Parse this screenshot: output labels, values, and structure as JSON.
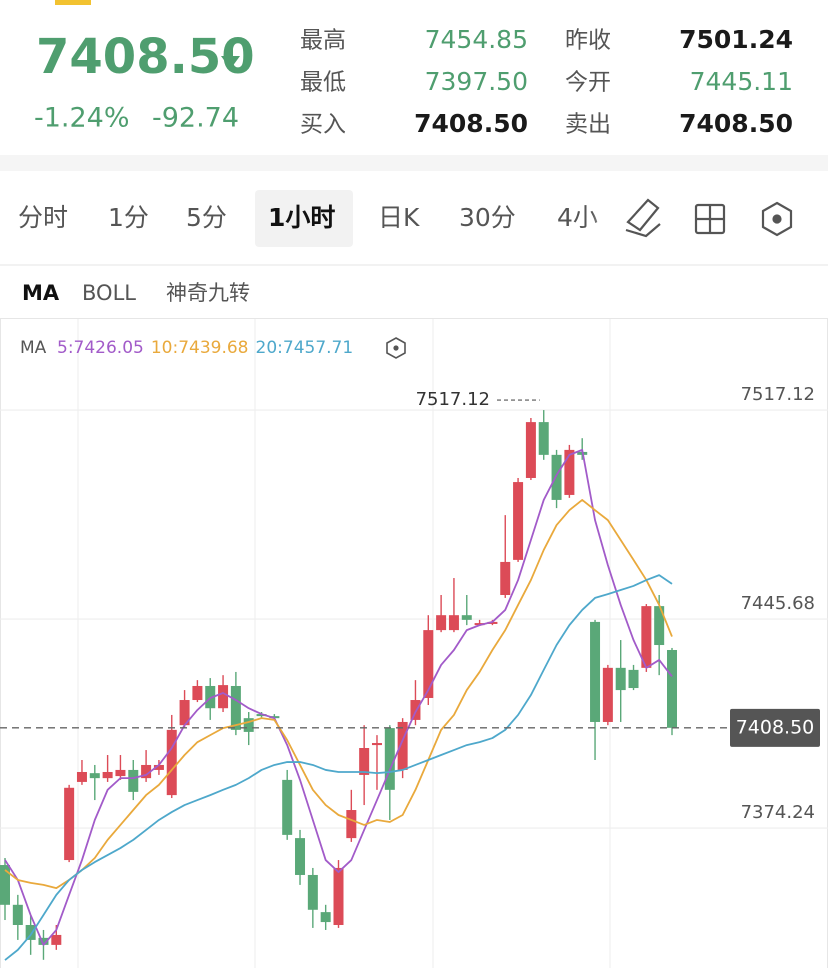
{
  "header": {
    "price": "7408.50",
    "change_pct": "-1.24%",
    "change": "-92.74",
    "stats": [
      {
        "label": "最高",
        "value": "7454.85",
        "tone": "green"
      },
      {
        "label": "昨收",
        "value": "7501.24",
        "tone": "black"
      },
      {
        "label": "最低",
        "value": "7397.50",
        "tone": "green"
      },
      {
        "label": "今开",
        "value": "7445.11",
        "tone": "green"
      },
      {
        "label": "买入",
        "value": "7408.50",
        "tone": "black"
      },
      {
        "label": "卖出",
        "value": "7408.50",
        "tone": "black"
      }
    ]
  },
  "tabs": [
    "分时",
    "1分",
    "5分",
    "1小时",
    "日K",
    "30分",
    "4小"
  ],
  "active_tab": 3,
  "indicators": [
    "MA",
    "BOLL",
    "神奇九转"
  ],
  "active_indicator": 0,
  "chart_data": {
    "type": "candlestick",
    "legend_title": "MA",
    "up_color": "#dc4b57",
    "down_color": "#5aa878",
    "ylim": [
      7326.4,
      7547.9
    ],
    "yticks": [
      7517.12,
      7445.68,
      7374.24
    ],
    "grid": true,
    "max_label": {
      "value": 7517.12,
      "label": "7517.12"
    },
    "last_price": {
      "value": 7408.5,
      "label": "7408.50"
    },
    "open": [
      7361.6,
      7348.0,
      7341.1,
      7336.7,
      7334.3,
      7363.3,
      7390.0,
      7393.0,
      7391.3,
      7392.0,
      7394.1,
      7391.3,
      7394.1,
      7385.5,
      7409.4,
      7418.0,
      7422.8,
      7415.2,
      7422.8,
      7411.8,
      7413.2,
      7412.5,
      7390.7,
      7370.8,
      7358.2,
      7345.5,
      7341.1,
      7370.8,
      7392.4,
      7402.6,
      7408.4,
      7394.1,
      7411.2,
      7418.7,
      7441.9,
      7441.9,
      7447.0,
      7443.6,
      7444.0,
      7453.9,
      7465.9,
      7493.9,
      7513.0,
      7501.8,
      7488.1,
      7502.8,
      7444.7,
      7410.5,
      7429.0,
      7428.3,
      7429.0,
      7450.1,
      7435.1
    ],
    "high": [
      7364.0,
      7351.4,
      7344.5,
      7339.4,
      7341.1,
      7389.0,
      7397.5,
      7395.8,
      7399.2,
      7399.2,
      7397.5,
      7400.9,
      7397.5,
      7412.9,
      7421.4,
      7424.8,
      7425.5,
      7426.5,
      7427.6,
      7413.9,
      7413.9,
      7413.2,
      7394.1,
      7373.6,
      7360.6,
      7348.0,
      7363.3,
      7387.3,
      7409.4,
      7406.0,
      7409.4,
      7411.8,
      7424.8,
      7447.0,
      7453.9,
      7459.7,
      7453.9,
      7445.4,
      7445.4,
      7481.2,
      7493.9,
      7514.4,
      7517.12,
      7503.5,
      7505.2,
      7507.5,
      7445.4,
      7430.0,
      7438.5,
      7430.0,
      7450.8,
      7453.9,
      7435.8
    ],
    "low": [
      7342.8,
      7336.0,
      7330.9,
      7329.2,
      7332.6,
      7362.6,
      7389.0,
      7383.8,
      7390.0,
      7390.7,
      7383.8,
      7390.0,
      7392.4,
      7384.5,
      7408.4,
      7417.3,
      7411.2,
      7413.9,
      7406.0,
      7402.6,
      7411.8,
      7411.2,
      7370.2,
      7354.8,
      7340.1,
      7339.4,
      7340.1,
      7369.5,
      7382.1,
      7387.3,
      7377.0,
      7391.3,
      7409.4,
      7416.3,
      7441.2,
      7441.2,
      7443.6,
      7443.3,
      7443.6,
      7452.9,
      7465.2,
      7493.2,
      7500.1,
      7483.6,
      7487.1,
      7500.1,
      7397.5,
      7409.4,
      7410.5,
      7421.4,
      7427.6,
      7426.5,
      7406.0
    ],
    "close": [
      7348.0,
      7341.1,
      7336.0,
      7334.3,
      7337.7,
      7388.0,
      7393.4,
      7391.3,
      7393.4,
      7394.1,
      7386.6,
      7395.8,
      7395.8,
      7407.8,
      7418.0,
      7422.8,
      7415.2,
      7423.1,
      7407.8,
      7407.1,
      7412.5,
      7411.8,
      7371.9,
      7358.2,
      7346.3,
      7342.1,
      7360.6,
      7380.4,
      7401.6,
      7403.3,
      7387.3,
      7410.5,
      7418.0,
      7441.9,
      7447.0,
      7447.0,
      7445.4,
      7444.3,
      7444.7,
      7465.2,
      7492.5,
      7513.0,
      7501.8,
      7486.4,
      7503.5,
      7501.8,
      7410.5,
      7429.0,
      7421.4,
      7422.1,
      7450.1,
      7436.8,
      7408.5
    ],
    "series": [
      {
        "name": "5:7426.05",
        "color": "#a25bc9",
        "values": [
          7363.3,
          7356.5,
          7344.5,
          7334.3,
          7339.4,
          7351.4,
          7363.3,
          7377.0,
          7387.3,
          7391.3,
          7391.3,
          7392.4,
          7395.8,
          7401.6,
          7409.4,
          7414.6,
          7418.7,
          7420.4,
          7418.0,
          7415.2,
          7413.2,
          7411.8,
          7402.6,
          7390.7,
          7377.0,
          7363.3,
          7359.2,
          7363.3,
          7373.6,
          7383.8,
          7394.1,
          7404.3,
          7413.9,
          7421.4,
          7430.0,
          7435.1,
          7441.9,
          7443.6,
          7444.7,
          7448.8,
          7459.0,
          7472.7,
          7486.4,
          7494.9,
          7501.8,
          7503.5,
          7479.5,
          7464.1,
          7450.5,
          7438.5,
          7429.0,
          7431.7,
          7426.05
        ]
      },
      {
        "name": "10:7439.68",
        "color": "#e9a93c",
        "values": [
          7359.9,
          7356.5,
          7355.5,
          7354.8,
          7353.7,
          7356.5,
          7359.9,
          7364.0,
          7370.2,
          7375.3,
          7380.4,
          7385.5,
          7389.0,
          7394.1,
          7399.2,
          7403.6,
          7406.0,
          7408.4,
          7409.4,
          7410.5,
          7411.8,
          7411.2,
          7404.3,
          7395.8,
          7387.3,
          7382.1,
          7378.7,
          7377.0,
          7375.3,
          7377.0,
          7376.3,
          7378.7,
          7387.3,
          7397.5,
          7407.8,
          7412.9,
          7421.4,
          7427.6,
          7435.1,
          7441.9,
          7450.5,
          7459.0,
          7469.3,
          7477.8,
          7482.9,
          7486.4,
          7482.9,
          7479.5,
          7472.7,
          7465.9,
          7459.0,
          7450.5,
          7439.68
        ]
      },
      {
        "name": "20:7457.71",
        "color": "#4ea8cb",
        "values": [
          7329.1,
          7332.6,
          7337.7,
          7344.5,
          7351.4,
          7356.5,
          7359.9,
          7362.6,
          7365.0,
          7367.4,
          7370.2,
          7373.6,
          7377.0,
          7379.7,
          7382.1,
          7383.8,
          7385.5,
          7387.3,
          7389.0,
          7391.3,
          7394.1,
          7395.8,
          7396.8,
          7396.8,
          7395.8,
          7394.1,
          7393.4,
          7393.4,
          7393.4,
          7393.0,
          7393.4,
          7394.1,
          7395.8,
          7397.5,
          7399.2,
          7400.9,
          7402.6,
          7403.6,
          7405.0,
          7407.8,
          7412.9,
          7419.7,
          7428.3,
          7436.8,
          7443.6,
          7448.8,
          7452.9,
          7454.2,
          7455.6,
          7457.0,
          7459.0,
          7460.7,
          7457.71
        ]
      }
    ]
  }
}
